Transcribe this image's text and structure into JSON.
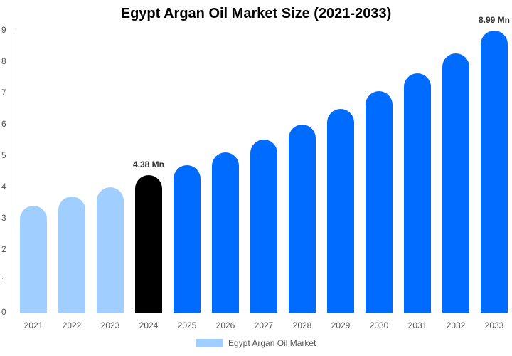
{
  "chart_data": {
    "type": "bar",
    "title": "Egypt Argan Oil Market Size (2021-2033)",
    "xlabel": "",
    "ylabel": "",
    "categories": [
      "2021",
      "2022",
      "2023",
      "2024",
      "2025",
      "2026",
      "2027",
      "2028",
      "2029",
      "2030",
      "2031",
      "2032",
      "2033"
    ],
    "series": [
      {
        "name": "Egypt Argan Oil Market",
        "values": [
          3.42,
          3.71,
          4.01,
          4.38,
          4.71,
          5.12,
          5.53,
          5.99,
          6.51,
          7.06,
          7.63,
          8.27,
          8.99
        ]
      }
    ],
    "bar_colors": [
      "#a0cfff",
      "#a0cfff",
      "#a0cfff",
      "#000000",
      "#006cff",
      "#006cff",
      "#006cff",
      "#006cff",
      "#006cff",
      "#006cff",
      "#006cff",
      "#006cff",
      "#006cff"
    ],
    "data_labels": [
      {
        "category": "2024",
        "text": "4.38 Mn"
      },
      {
        "category": "2033",
        "text": "8.99 Mn"
      }
    ],
    "yticks": [
      "0",
      "1",
      "2",
      "3",
      "4",
      "5",
      "6",
      "7",
      "8",
      "9"
    ],
    "ylim": [
      0,
      9
    ],
    "grid": false,
    "legend_position": "bottom"
  },
  "legend": {
    "label": "Egypt Argan Oil Market",
    "color": "#a0cfff"
  }
}
